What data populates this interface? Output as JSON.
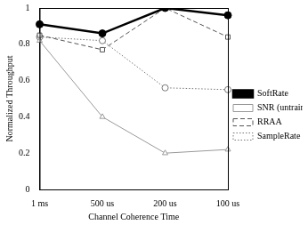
{
  "chart_data": {
    "type": "line",
    "x_label": "Channel Coherence Time",
    "y_label": "Normalized Throughput",
    "categories": [
      "1 ms",
      "500 us",
      "200 us",
      "100 us"
    ],
    "ylim": [
      0,
      1
    ],
    "yticks": [
      0,
      0.2,
      0.4,
      0.6,
      0.8,
      1
    ],
    "grid": false,
    "legend": "right",
    "series": [
      {
        "name": "SoftRate",
        "color": "#000000",
        "marker": "filled_circle",
        "line_style": "solid",
        "values": [
          0.91,
          0.86,
          1.0,
          0.96
        ]
      },
      {
        "name": "SNR (untrained)",
        "color": "#999999",
        "marker": "triangle",
        "line_style": "solid",
        "values": [
          0.82,
          0.4,
          0.2,
          0.22
        ]
      },
      {
        "name": "RRAA",
        "color": "#555555",
        "marker": "square",
        "line_style": "dashed",
        "values": [
          0.85,
          0.77,
          1.0,
          0.84
        ]
      },
      {
        "name": "SampleRate",
        "color": "#777777",
        "marker": "circle",
        "line_style": "dotted",
        "values": [
          0.84,
          0.82,
          0.56,
          0.55
        ]
      }
    ]
  }
}
